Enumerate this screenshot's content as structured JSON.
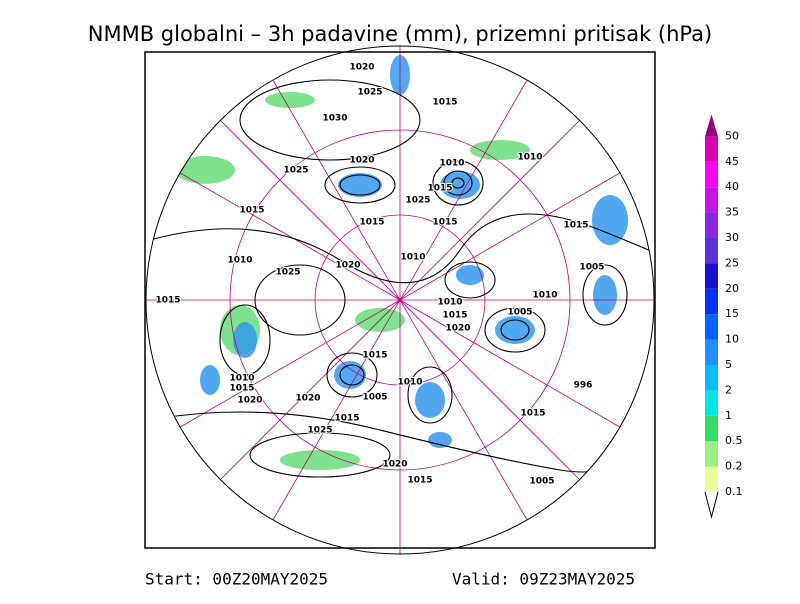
{
  "title": "NMMB globalni – 3h padavine (mm), prizemni pritisak (hPa)",
  "colorbar": {
    "levels": [
      0.1,
      0.2,
      0.5,
      1,
      2,
      5,
      10,
      15,
      20,
      25,
      30,
      35,
      40,
      45,
      50
    ],
    "colors": [
      "#e6ff99",
      "#99f080",
      "#33dd66",
      "#00e6e6",
      "#00bfff",
      "#1e90ff",
      "#0064ff",
      "#0032ff",
      "#1414d2",
      "#5a32dc",
      "#8c28dc",
      "#c814e6",
      "#ff00ff",
      "#dc00b4",
      "#96007d"
    ]
  },
  "isobar_labels": [
    1020,
    1025,
    1015,
    1030,
    1020,
    1010,
    1010,
    1025,
    1015,
    1025,
    1015,
    1015,
    1015,
    1015,
    1010,
    1020,
    1010,
    1025,
    1005,
    1010,
    1015,
    1010,
    1005,
    1015,
    1020,
    1015,
    1010,
    1015,
    1010,
    1005,
    996,
    1020,
    1020,
    1015,
    1015,
    1025,
    1020,
    1015,
    1005
  ],
  "footer": {
    "start": "Start: 00Z20MAY2025",
    "valid": "Valid: 09Z23MAY2025"
  }
}
